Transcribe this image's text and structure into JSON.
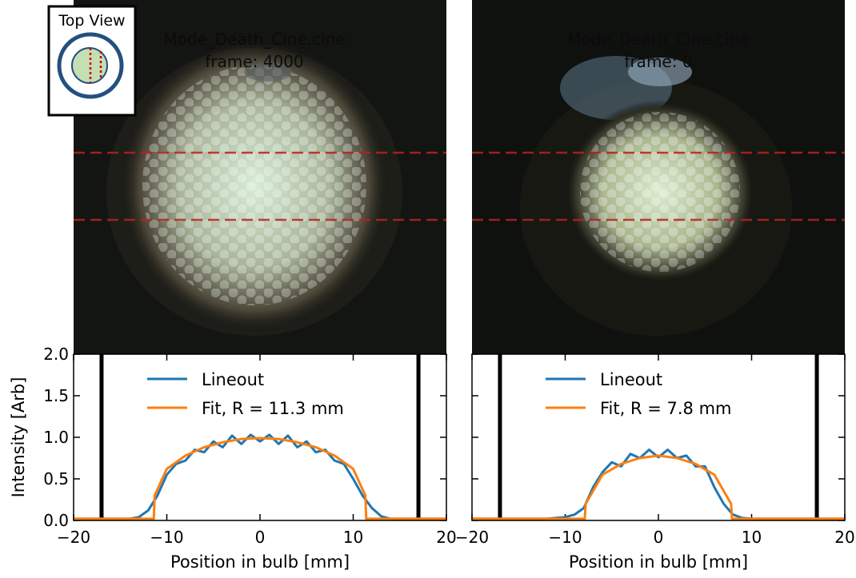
{
  "inset": {
    "title": "Top View"
  },
  "chart_data": [
    {
      "type": "line",
      "image_title": [
        "Mode_Death_Cine.cine",
        "frame: 4000"
      ],
      "xlabel": "Position in bulb [mm]",
      "ylabel": "Intensity [Arb]",
      "xlim": [
        -20,
        20
      ],
      "ylim": [
        0,
        2
      ],
      "xticks": [
        {
          "value": -20,
          "label": "−20"
        },
        {
          "value": -10,
          "label": "−10"
        },
        0,
        10,
        20
      ],
      "yticks": [
        {
          "value": 0,
          "label": "0.0"
        },
        {
          "value": 0.5,
          "label": "0.5"
        },
        {
          "value": 1,
          "label": "1.0"
        },
        {
          "value": 1.5,
          "label": "1.5"
        },
        {
          "value": 2,
          "label": "2.0"
        }
      ],
      "vlines": [
        -17,
        17
      ],
      "series": [
        {
          "name": "Lineout",
          "color": "#1f77b4",
          "x": [
            -20,
            -19,
            -18,
            -17,
            -16,
            -15,
            -14,
            -13,
            -12,
            -11,
            -10,
            -9,
            -8,
            -7,
            -6,
            -5,
            -4,
            -3,
            -2,
            -1,
            0,
            1,
            2,
            3,
            4,
            5,
            6,
            7,
            8,
            9,
            10,
            11,
            12,
            13,
            14,
            15,
            16,
            17,
            18,
            19,
            20
          ],
          "values": [
            0.02,
            0.02,
            0.02,
            0.02,
            0.02,
            0.02,
            0.02,
            0.04,
            0.12,
            0.3,
            0.55,
            0.68,
            0.72,
            0.85,
            0.82,
            0.95,
            0.88,
            1.02,
            0.92,
            1.03,
            0.95,
            1.03,
            0.92,
            1.02,
            0.88,
            0.95,
            0.82,
            0.85,
            0.72,
            0.68,
            0.5,
            0.3,
            0.15,
            0.05,
            0.02,
            0.02,
            0.02,
            0.02,
            0.02,
            0.02,
            0.02
          ]
        },
        {
          "name": "Fit, R = 11.3 mm",
          "color": "#ff7f0e",
          "x": [
            -20,
            -11.4,
            -11.3,
            -10,
            -8,
            -6,
            -4,
            -2,
            0,
            2,
            4,
            6,
            8,
            10,
            11.3,
            11.4,
            20
          ],
          "values": [
            0.02,
            0.02,
            0.3,
            0.62,
            0.78,
            0.88,
            0.94,
            0.98,
            0.99,
            0.98,
            0.94,
            0.88,
            0.78,
            0.62,
            0.3,
            0.02,
            0.02
          ]
        }
      ]
    },
    {
      "type": "line",
      "image_title": [
        "Mode_Death_Cine.cine",
        "frame: 0"
      ],
      "xlabel": "Position in bulb [mm]",
      "xlim": [
        -20,
        20
      ],
      "ylim": [
        0,
        2
      ],
      "xticks": [
        {
          "value": -20,
          "label": "−20"
        },
        {
          "value": -10,
          "label": "−10"
        },
        0,
        10,
        20
      ],
      "vlines": [
        -17,
        17
      ],
      "series": [
        {
          "name": "Lineout",
          "color": "#1f77b4",
          "x": [
            -20,
            -19,
            -18,
            -17,
            -16,
            -15,
            -14,
            -13,
            -12,
            -11,
            -10,
            -9,
            -8,
            -7,
            -6,
            -5,
            -4,
            -3,
            -2,
            -1,
            0,
            1,
            2,
            3,
            4,
            5,
            6,
            7,
            8,
            9,
            10,
            11,
            12,
            13,
            14,
            15,
            16,
            17,
            18,
            19,
            20
          ],
          "values": [
            0.02,
            0.02,
            0.02,
            0.02,
            0.02,
            0.02,
            0.02,
            0.02,
            0.02,
            0.03,
            0.04,
            0.07,
            0.15,
            0.4,
            0.58,
            0.7,
            0.65,
            0.8,
            0.75,
            0.85,
            0.76,
            0.85,
            0.75,
            0.78,
            0.65,
            0.65,
            0.4,
            0.2,
            0.07,
            0.03,
            0.02,
            0.02,
            0.02,
            0.02,
            0.02,
            0.02,
            0.02,
            0.02,
            0.02,
            0.02,
            0.02
          ]
        },
        {
          "name": "Fit, R = 7.8 mm",
          "color": "#ff7f0e",
          "x": [
            -20,
            -7.9,
            -7.8,
            -6,
            -4,
            -2,
            0,
            2,
            4,
            6,
            7.8,
            7.9,
            20
          ],
          "values": [
            0.02,
            0.02,
            0.2,
            0.55,
            0.68,
            0.75,
            0.78,
            0.75,
            0.68,
            0.55,
            0.2,
            0.02,
            0.02
          ]
        }
      ]
    }
  ]
}
